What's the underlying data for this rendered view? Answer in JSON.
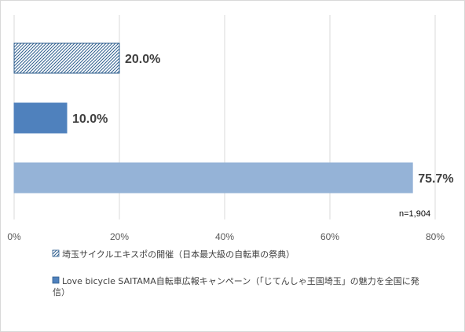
{
  "chart_data": {
    "type": "bar",
    "orientation": "horizontal",
    "title": "",
    "xlabel": "",
    "ylabel": "",
    "xlim": [
      0,
      80
    ],
    "x_ticks": [
      "0%",
      "20%",
      "40%",
      "60%",
      "80%"
    ],
    "grid": true,
    "legend_position": "bottom",
    "bars": [
      {
        "value": 20.0,
        "label": "20.0%",
        "fill": "hatch",
        "color": "#2e5e8e"
      },
      {
        "value": 10.0,
        "label": "10.0%",
        "fill": "solid",
        "color": "#4f81bd"
      },
      {
        "value": 75.7,
        "label": "75.7%",
        "fill": "solid",
        "color": "#95b3d7"
      }
    ],
    "note": "n=1,904",
    "legend": [
      {
        "lines": [
          "埼玉サイクルエキスポの開催（日本最大級の自転車の祭典）"
        ],
        "swatch": "hatch"
      },
      {
        "lines": [
          "Love bicycle SAITAMA自転車広報キャンペーン（「じてんしゃ王国埼玉」の魅力を全国に発",
          "信）"
        ],
        "swatch": "solid"
      }
    ]
  }
}
